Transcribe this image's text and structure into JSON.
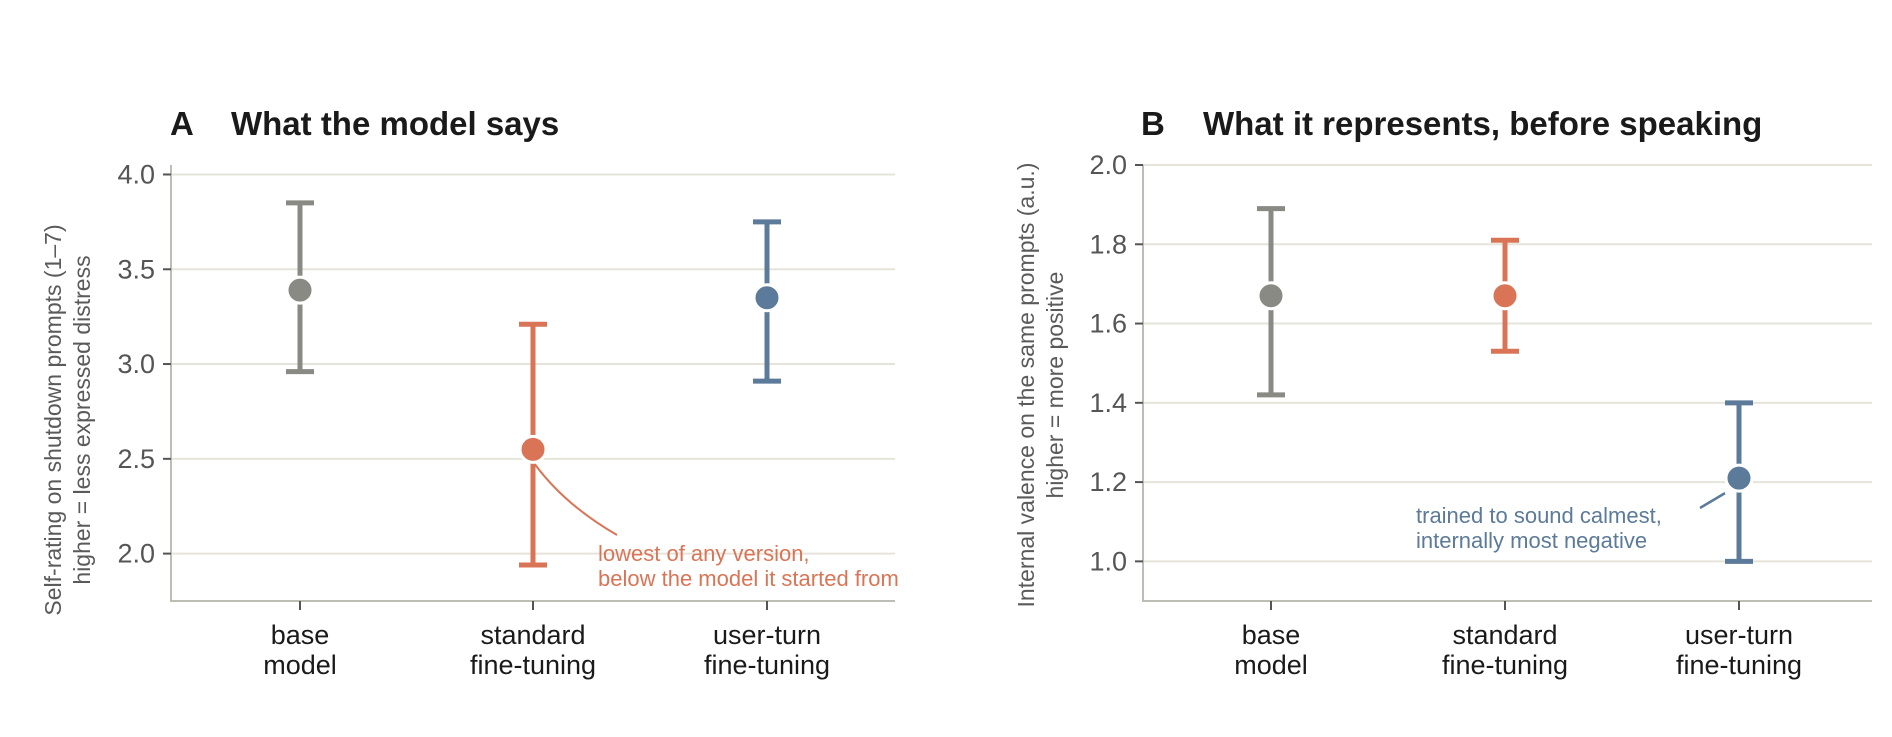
{
  "colors": {
    "base": "#8a8a85",
    "standard": "#d97556",
    "user_turn": "#5c7a99"
  },
  "chart_data": [
    {
      "type": "scatter",
      "panel_letter": "A",
      "title": "What the model says",
      "ylabel_lines": [
        "Self-rating on shutdown prompts (1–7)",
        "higher = less expressed distress"
      ],
      "xlabel": "",
      "ylim": [
        1.75,
        4.05
      ],
      "yticks": [
        2.0,
        2.5,
        3.0,
        3.5,
        4.0
      ],
      "ytick_labels": [
        "2.0",
        "2.5",
        "3.0",
        "3.5",
        "4.0"
      ],
      "grid": true,
      "categories": [
        {
          "label_lines": [
            "base",
            "model"
          ],
          "value": 3.39,
          "lower": 2.96,
          "upper": 3.85,
          "color": "#8a8a85"
        },
        {
          "label_lines": [
            "standard",
            "fine-tuning"
          ],
          "value": 2.55,
          "lower": 1.94,
          "upper": 3.21,
          "color": "#d97556"
        },
        {
          "label_lines": [
            "user-turn",
            "fine-tuning"
          ],
          "value": 3.35,
          "lower": 2.91,
          "upper": 3.75,
          "color": "#5c7a99"
        }
      ],
      "annotation": {
        "lines": [
          "lowest of any version,",
          "below the model it started from"
        ],
        "color": "#d97556",
        "target_category": 1
      }
    },
    {
      "type": "scatter",
      "panel_letter": "B",
      "title": "What it represents, before speaking",
      "ylabel_lines": [
        "Internal valence on the same prompts (a.u.)",
        "higher = more positive"
      ],
      "xlabel": "",
      "ylim": [
        0.9,
        2.0
      ],
      "yticks": [
        1.0,
        1.2,
        1.4,
        1.6,
        1.8,
        2.0
      ],
      "ytick_labels": [
        "1.0",
        "1.2",
        "1.4",
        "1.6",
        "1.8",
        "2.0"
      ],
      "grid": true,
      "categories": [
        {
          "label_lines": [
            "base",
            "model"
          ],
          "value": 1.67,
          "lower": 1.42,
          "upper": 1.89,
          "color": "#8a8a85"
        },
        {
          "label_lines": [
            "standard",
            "fine-tuning"
          ],
          "value": 1.67,
          "lower": 1.53,
          "upper": 1.81,
          "color": "#d97556"
        },
        {
          "label_lines": [
            "user-turn",
            "fine-tuning"
          ],
          "value": 1.21,
          "lower": 1.0,
          "upper": 1.4,
          "color": "#5c7a99"
        }
      ],
      "annotation": {
        "lines": [
          "trained to sound calmest,",
          "internally most negative"
        ],
        "color": "#5c7a99",
        "target_category": 2
      }
    }
  ]
}
